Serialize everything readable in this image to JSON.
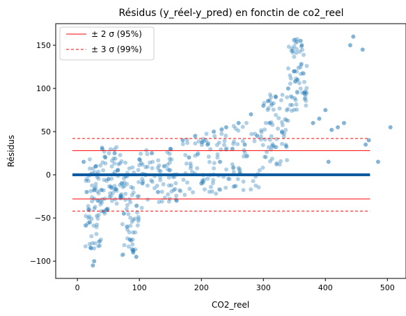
{
  "chart_data": {
    "type": "scatter",
    "title": "Résidus (y_réel-y_pred) en fonctin de co2_reel",
    "xlabel": "CO2_reel",
    "ylabel": "Résidus",
    "xlim": [
      -35,
      530
    ],
    "ylim": [
      -120,
      175
    ],
    "xticks": [
      0,
      100,
      200,
      300,
      400,
      500
    ],
    "yticks": [
      -100,
      -50,
      0,
      50,
      100,
      150
    ],
    "grid": false,
    "legend_position": "top-left",
    "colors": {
      "points": "#1f77b4",
      "zero_line": "#08589e",
      "bands": "#ff0000"
    },
    "lines": [
      {
        "id": "zero",
        "y": 0,
        "x": [
          -8,
          472
        ],
        "style": "solid",
        "color": "#08589e"
      },
      {
        "id": "sigma2_up",
        "y": 28,
        "x": [
          -8,
          472
        ],
        "style": "solid",
        "color": "#ff0000"
      },
      {
        "id": "sigma2_down",
        "y": -28,
        "x": [
          -8,
          472
        ],
        "style": "solid",
        "color": "#ff0000"
      },
      {
        "id": "sigma3_up",
        "y": 42,
        "x": [
          -8,
          472
        ],
        "style": "dashed",
        "color": "#ff0000"
      },
      {
        "id": "sigma3_down",
        "y": -42,
        "x": [
          -8,
          472
        ],
        "style": "dashed",
        "color": "#ff0000"
      }
    ],
    "legend": [
      {
        "label": "± 2 σ (95%)",
        "style": "solid",
        "color": "#ff0000"
      },
      {
        "label": "± 3 σ (99%)",
        "style": "dashed",
        "color": "#ff0000"
      }
    ],
    "scatter_regions": [
      {
        "x": [
          12,
          38
        ],
        "y": [
          -95,
          20
        ]
      },
      {
        "x": [
          38,
          72
        ],
        "y": [
          -50,
          35
        ]
      },
      {
        "x": [
          72,
          100
        ],
        "y": [
          -95,
          15
        ]
      },
      {
        "x": [
          100,
          160
        ],
        "y": [
          -40,
          30
        ]
      },
      {
        "x": [
          160,
          230
        ],
        "y": [
          -35,
          50
        ]
      },
      {
        "x": [
          230,
          300
        ],
        "y": [
          -25,
          60
        ]
      },
      {
        "x": [
          300,
          340
        ],
        "y": [
          5,
          95
        ]
      },
      {
        "x": [
          340,
          370
        ],
        "y": [
          70,
          160
        ]
      }
    ],
    "points": [
      [
        10,
        15
      ],
      [
        15,
        -20
      ],
      [
        18,
        -40
      ],
      [
        20,
        -55
      ],
      [
        22,
        -85
      ],
      [
        25,
        -105
      ],
      [
        27,
        -100
      ],
      [
        30,
        10
      ],
      [
        33,
        -30
      ],
      [
        40,
        30
      ],
      [
        45,
        20
      ],
      [
        50,
        -5
      ],
      [
        55,
        -15
      ],
      [
        60,
        25
      ],
      [
        65,
        5
      ],
      [
        70,
        -25
      ],
      [
        75,
        -45
      ],
      [
        80,
        -60
      ],
      [
        85,
        -75
      ],
      [
        90,
        -90
      ],
      [
        95,
        -95
      ],
      [
        100,
        18
      ],
      [
        105,
        -10
      ],
      [
        110,
        0
      ],
      [
        120,
        25
      ],
      [
        130,
        -20
      ],
      [
        140,
        10
      ],
      [
        150,
        30
      ],
      [
        160,
        -30
      ],
      [
        170,
        40
      ],
      [
        180,
        20
      ],
      [
        190,
        45
      ],
      [
        200,
        -10
      ],
      [
        210,
        35
      ],
      [
        220,
        50
      ],
      [
        230,
        15
      ],
      [
        240,
        55
      ],
      [
        250,
        30
      ],
      [
        260,
        60
      ],
      [
        270,
        35
      ],
      [
        280,
        70
      ],
      [
        290,
        45
      ],
      [
        300,
        80
      ],
      [
        310,
        60
      ],
      [
        320,
        90
      ],
      [
        330,
        50
      ],
      [
        340,
        100
      ],
      [
        350,
        120
      ],
      [
        355,
        110
      ],
      [
        360,
        155
      ],
      [
        362,
        150
      ],
      [
        366,
        95
      ],
      [
        380,
        60
      ],
      [
        390,
        65
      ],
      [
        400,
        75
      ],
      [
        405,
        15
      ],
      [
        410,
        52
      ],
      [
        420,
        55
      ],
      [
        430,
        60
      ],
      [
        440,
        150
      ],
      [
        445,
        160
      ],
      [
        460,
        145
      ],
      [
        485,
        15
      ],
      [
        505,
        55
      ],
      [
        470,
        40
      ],
      [
        465,
        35
      ]
    ]
  }
}
